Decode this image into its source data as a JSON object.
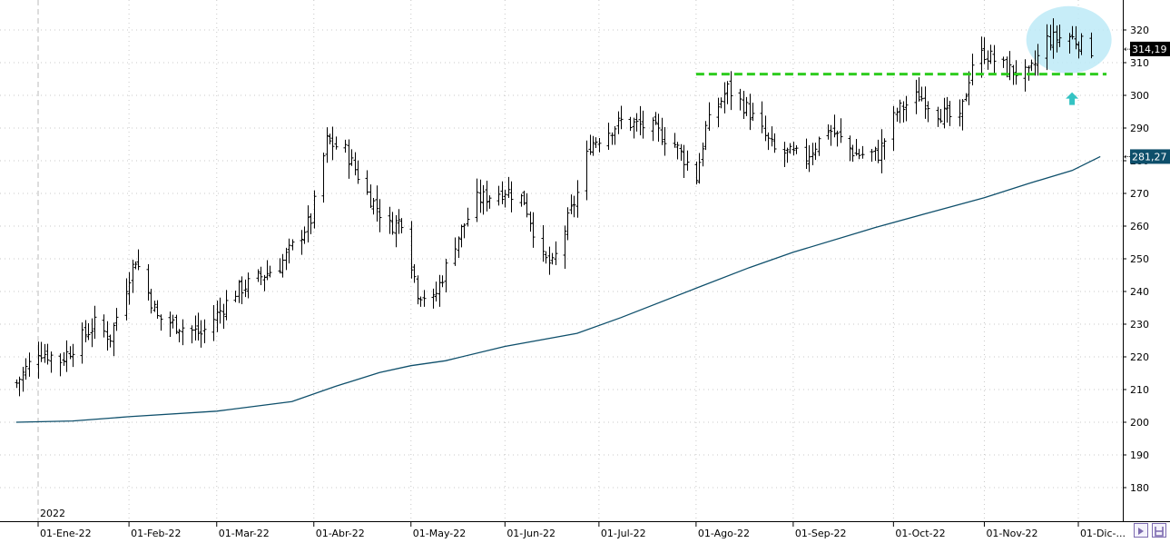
{
  "chart_data": {
    "type": "ohlc",
    "title": "",
    "xlabel": "",
    "ylabel": "",
    "ylim": [
      170,
      330
    ],
    "y_ticks": [
      180,
      190,
      200,
      210,
      220,
      230,
      240,
      250,
      260,
      270,
      280,
      290,
      300,
      310,
      320,
      330
    ],
    "y_tick_labels": [
      "180",
      "190",
      "200",
      "210",
      "220",
      "230",
      "240",
      "250",
      "260",
      "270",
      "280",
      "290",
      "300",
      "310",
      "320"
    ],
    "year_label": "2022",
    "x_ticks": [
      {
        "date": "2022-01-03",
        "label": "01-Ene-22"
      },
      {
        "date": "2022-02-01",
        "label": "01-Feb-22"
      },
      {
        "date": "2022-03-01",
        "label": "01-Mar-22"
      },
      {
        "date": "2022-04-01",
        "label": "01-Abr-22"
      },
      {
        "date": "2022-05-02",
        "label": "01-May-22"
      },
      {
        "date": "2022-06-01",
        "label": "01-Jun-22"
      },
      {
        "date": "2022-07-01",
        "label": "01-Jul-22"
      },
      {
        "date": "2022-08-01",
        "label": "01-Ago-22"
      },
      {
        "date": "2022-09-01",
        "label": "01-Sep-22"
      },
      {
        "date": "2022-10-03",
        "label": "01-Oct-22"
      },
      {
        "date": "2022-11-01",
        "label": "01-Nov-22"
      },
      {
        "date": "2022-12-01",
        "label": "01-Dic-..."
      }
    ],
    "price_series": {
      "name": "",
      "anchors": [
        [
          "2021-12-27",
          212
        ],
        [
          "2022-01-03",
          222
        ],
        [
          "2022-01-10",
          219
        ],
        [
          "2022-01-21",
          230
        ],
        [
          "2022-01-26",
          226
        ],
        [
          "2022-02-01",
          245
        ],
        [
          "2022-02-03",
          250
        ],
        [
          "2022-02-10",
          232
        ],
        [
          "2022-02-24",
          227
        ],
        [
          "2022-03-07",
          240
        ],
        [
          "2022-03-21",
          248
        ],
        [
          "2022-03-31",
          262
        ],
        [
          "2022-04-05",
          286
        ],
        [
          "2022-04-11",
          283
        ],
        [
          "2022-04-18",
          270
        ],
        [
          "2022-04-25",
          260
        ],
        [
          "2022-04-29",
          262
        ],
        [
          "2022-05-04",
          240
        ],
        [
          "2022-05-09",
          237
        ],
        [
          "2022-05-16",
          255
        ],
        [
          "2022-05-23",
          268
        ],
        [
          "2022-06-01",
          271
        ],
        [
          "2022-06-07",
          268
        ],
        [
          "2022-06-13",
          250
        ],
        [
          "2022-06-16",
          248
        ],
        [
          "2022-06-24",
          270
        ],
        [
          "2022-06-28",
          285
        ],
        [
          "2022-07-08",
          292
        ],
        [
          "2022-07-18",
          290
        ],
        [
          "2022-07-25",
          285
        ],
        [
          "2022-08-01",
          275
        ],
        [
          "2022-08-04",
          290
        ],
        [
          "2022-08-11",
          302
        ],
        [
          "2022-08-17",
          296
        ],
        [
          "2022-08-26",
          283
        ],
        [
          "2022-09-05",
          281
        ],
        [
          "2022-09-12",
          290
        ],
        [
          "2022-09-21",
          282
        ],
        [
          "2022-09-28",
          282
        ],
        [
          "2022-10-04",
          295
        ],
        [
          "2022-10-11",
          300
        ],
        [
          "2022-10-17",
          295
        ],
        [
          "2022-10-24",
          292
        ],
        [
          "2022-10-28",
          310
        ],
        [
          "2022-11-01",
          313
        ],
        [
          "2022-11-08",
          308
        ],
        [
          "2022-11-15",
          306
        ],
        [
          "2022-11-21",
          317
        ],
        [
          "2022-11-28",
          318
        ],
        [
          "2022-12-05",
          314
        ]
      ],
      "last_price": 314.19,
      "last_price_label": "314,19",
      "color": "#000000"
    },
    "moving_average": {
      "name": "",
      "points": [
        [
          "2021-12-27",
          200.0
        ],
        [
          "2022-01-14",
          200.4
        ],
        [
          "2022-02-01",
          201.7
        ],
        [
          "2022-03-01",
          203.4
        ],
        [
          "2022-03-25",
          206.3
        ],
        [
          "2022-04-08",
          211.0
        ],
        [
          "2022-04-22",
          215.2
        ],
        [
          "2022-05-02",
          217.3
        ],
        [
          "2022-05-13",
          218.8
        ],
        [
          "2022-06-01",
          223.2
        ],
        [
          "2022-06-24",
          227.2
        ],
        [
          "2022-07-08",
          232.0
        ],
        [
          "2022-08-01",
          241.0
        ],
        [
          "2022-08-18",
          247.3
        ],
        [
          "2022-09-01",
          252.0
        ],
        [
          "2022-09-27",
          259.5
        ],
        [
          "2022-10-14",
          264.0
        ],
        [
          "2022-11-01",
          268.7
        ],
        [
          "2022-11-15",
          273.0
        ],
        [
          "2022-11-29",
          277.0
        ],
        [
          "2022-12-08",
          281.27
        ]
      ],
      "last_value_label": "281,27",
      "color": "#0e4f6b"
    },
    "annotations": {
      "support_line": {
        "value": 306.5,
        "from_date": "2022-08-01",
        "to_date": "2022-12-10",
        "color": "#2ecc1f"
      },
      "highlight_ellipse": {
        "center_date": "2022-11-28",
        "center_value": 317,
        "color": "#bdeaf7"
      },
      "arrow": {
        "date": "2022-11-29",
        "value": 299,
        "color": "#34c3c3",
        "direction": "up"
      }
    },
    "grid": true
  },
  "controls": {
    "scroll_button_icon": "scroll-right-icon",
    "hand_button_icon": "hand-tool-icon",
    "button_border_color": "#7d6bb0"
  }
}
